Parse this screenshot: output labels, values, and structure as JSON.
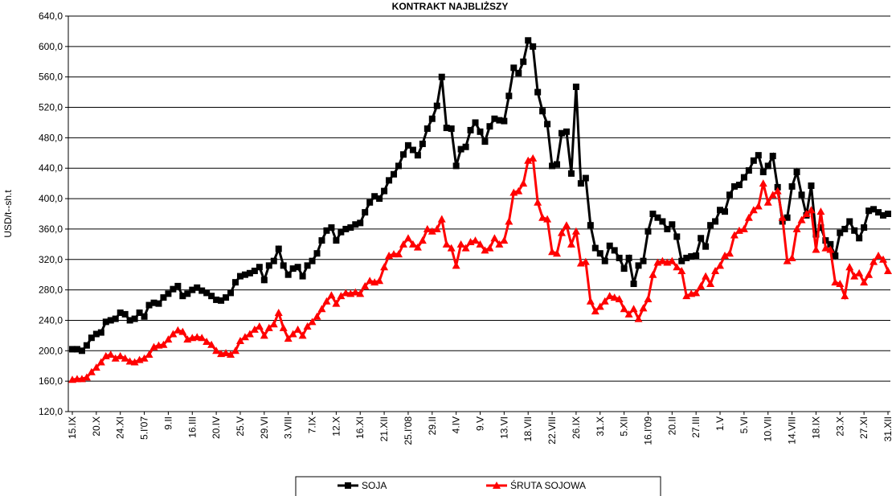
{
  "chart_data": {
    "type": "line",
    "title": "KONTRAKT NAJBLIŻSZY",
    "y_label": "USD/t--sh.t",
    "categories": [
      "15.IX",
      null,
      null,
      null,
      null,
      "20.X",
      null,
      null,
      null,
      null,
      "24.XI",
      null,
      null,
      null,
      null,
      "5.I'07",
      null,
      null,
      null,
      null,
      "9.II",
      null,
      null,
      null,
      null,
      "16.III",
      null,
      null,
      null,
      null,
      "20.IV",
      null,
      null,
      null,
      null,
      "25.V",
      null,
      null,
      null,
      null,
      "29.VI",
      null,
      null,
      null,
      null,
      "3.VIII",
      null,
      null,
      null,
      null,
      "7.IX",
      null,
      null,
      null,
      null,
      "12.X",
      null,
      null,
      null,
      null,
      "16.XI",
      null,
      null,
      null,
      null,
      "21.XII",
      null,
      null,
      null,
      null,
      "25.I'08",
      null,
      null,
      null,
      null,
      "29.II",
      null,
      null,
      null,
      null,
      "4.IV",
      null,
      null,
      null,
      null,
      "9.V",
      null,
      null,
      null,
      null,
      "13.VI",
      null,
      null,
      null,
      null,
      "18.VII",
      null,
      null,
      null,
      null,
      "22.VIII",
      null,
      null,
      null,
      null,
      "26.IX",
      null,
      null,
      null,
      null,
      "31.X",
      null,
      null,
      null,
      null,
      "5.XII",
      null,
      null,
      null,
      null,
      "16.I'09",
      null,
      null,
      null,
      null,
      "20.II",
      null,
      null,
      null,
      null,
      "27.III",
      null,
      null,
      null,
      null,
      "1.V",
      null,
      null,
      null,
      null,
      "5.VI",
      null,
      null,
      null,
      null,
      "10.VII",
      null,
      null,
      null,
      null,
      "14.VIII",
      null,
      null,
      null,
      null,
      "18.IX",
      null,
      null,
      null,
      null,
      "23.X",
      null,
      null,
      null,
      null,
      "27.XI",
      null,
      null,
      null,
      null,
      "31.XII"
    ],
    "series": [
      {
        "name": "SOJA",
        "color": "#000000",
        "marker": "square",
        "values": [
          202,
          202,
          200,
          207,
          217,
          222,
          224,
          238,
          240,
          242,
          250,
          248,
          240,
          242,
          250,
          245,
          260,
          263,
          262,
          270,
          275,
          281,
          285,
          272,
          275,
          280,
          283,
          279,
          276,
          272,
          267,
          266,
          270,
          276,
          290,
          298,
          300,
          302,
          305,
          310,
          293,
          312,
          318,
          334,
          312,
          300,
          308,
          310,
          298,
          312,
          318,
          328,
          345,
          358,
          362,
          345,
          356,
          360,
          362,
          366,
          368,
          382,
          395,
          403,
          400,
          410,
          424,
          432,
          443,
          458,
          470,
          464,
          457,
          472,
          492,
          505,
          522,
          560,
          493,
          492,
          443,
          465,
          468,
          490,
          500,
          488,
          475,
          495,
          505,
          503,
          502,
          535,
          572,
          565,
          580,
          608,
          600,
          540,
          515,
          498,
          443,
          445,
          486,
          488,
          433,
          547,
          420,
          427,
          365,
          335,
          328,
          318,
          338,
          332,
          322,
          308,
          322,
          288,
          312,
          318,
          357,
          380,
          375,
          370,
          360,
          366,
          350,
          318,
          322,
          324,
          325,
          348,
          337,
          365,
          370,
          385,
          383,
          405,
          416,
          418,
          428,
          437,
          450,
          457,
          435,
          443,
          456,
          415,
          370,
          375,
          416,
          435,
          405,
          378,
          417,
          353,
          362,
          345,
          340,
          325,
          355,
          360,
          370,
          358,
          348,
          362,
          384,
          386,
          382,
          378,
          380
        ]
      },
      {
        "name": "ŚRUTA SOJOWA",
        "color": "#ff0000",
        "marker": "triangle",
        "values": [
          162,
          163,
          163,
          165,
          172,
          178,
          185,
          193,
          195,
          190,
          193,
          190,
          186,
          185,
          188,
          190,
          195,
          205,
          207,
          208,
          215,
          222,
          227,
          225,
          215,
          217,
          218,
          217,
          212,
          208,
          200,
          196,
          197,
          195,
          200,
          213,
          218,
          222,
          228,
          232,
          220,
          230,
          235,
          250,
          230,
          216,
          222,
          228,
          220,
          232,
          238,
          245,
          255,
          265,
          273,
          262,
          272,
          276,
          275,
          277,
          275,
          285,
          292,
          290,
          292,
          310,
          325,
          327,
          327,
          340,
          348,
          340,
          336,
          345,
          360,
          357,
          360,
          373,
          340,
          335,
          312,
          340,
          335,
          343,
          345,
          340,
          332,
          335,
          348,
          340,
          345,
          370,
          408,
          410,
          420,
          450,
          453,
          395,
          375,
          373,
          330,
          328,
          355,
          365,
          340,
          357,
          315,
          317,
          265,
          252,
          258,
          265,
          272,
          270,
          268,
          255,
          248,
          255,
          242,
          256,
          268,
          300,
          316,
          318,
          316,
          318,
          310,
          305,
          272,
          275,
          276,
          285,
          298,
          288,
          305,
          312,
          325,
          328,
          352,
          358,
          360,
          375,
          385,
          390,
          420,
          395,
          405,
          410,
          375,
          318,
          322,
          360,
          372,
          380,
          385,
          333,
          383,
          335,
          333,
          290,
          288,
          272,
          310,
          298,
          302,
          290,
          300,
          317,
          325,
          320,
          305
        ]
      }
    ],
    "ylim": [
      120,
      640
    ],
    "yticks": [
      {
        "value": 120,
        "label": "120,0"
      },
      {
        "value": 160,
        "label": "160,0"
      },
      {
        "value": 200,
        "label": "200,0"
      },
      {
        "value": 240,
        "label": "240,0"
      },
      {
        "value": 280,
        "label": "280,0"
      },
      {
        "value": 320,
        "label": "320,0"
      },
      {
        "value": 360,
        "label": "360,0"
      },
      {
        "value": 400,
        "label": "400,0"
      },
      {
        "value": 440,
        "label": "440,0"
      },
      {
        "value": 480,
        "label": "480,0"
      },
      {
        "value": 520,
        "label": "520,0"
      },
      {
        "value": 560,
        "label": "560,0"
      },
      {
        "value": 600,
        "label": "600,0"
      },
      {
        "value": 640,
        "label": "640,0"
      }
    ],
    "grid": true,
    "legend": "bottom"
  }
}
